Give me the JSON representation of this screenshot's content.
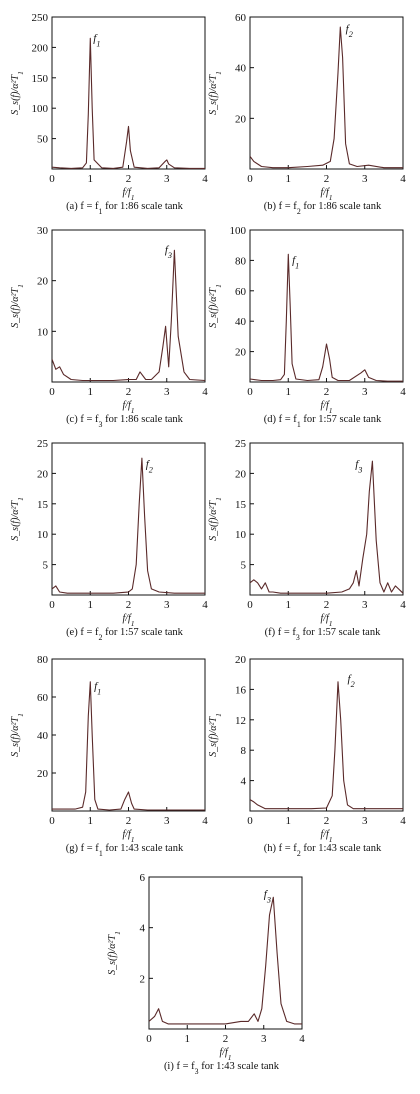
{
  "chart_data": [
    {
      "id": "a",
      "type": "line",
      "xlabel": "f/f_1",
      "ylabel": "S_s(f)/α²T_1",
      "xlim": [
        0,
        4
      ],
      "ylim": [
        0,
        250
      ],
      "xticks": [
        0,
        1,
        2,
        3,
        4
      ],
      "yticks": [
        50,
        100,
        150,
        200,
        250
      ],
      "peak_label": "f_1",
      "peak_label_at": [
        1.08,
        210
      ],
      "caption": "(a) f = f_1 for 1:86 scale tank",
      "x": [
        0,
        0.2,
        0.5,
        0.8,
        0.9,
        0.95,
        1.0,
        1.05,
        1.1,
        1.3,
        1.6,
        1.85,
        1.95,
        2.0,
        2.05,
        2.15,
        2.5,
        2.8,
        2.95,
        3.0,
        3.05,
        3.2,
        3.6,
        4.0
      ],
      "y": [
        3,
        2,
        1,
        2,
        10,
        90,
        215,
        100,
        15,
        2,
        1,
        3,
        45,
        70,
        30,
        3,
        1,
        2,
        12,
        15,
        8,
        2,
        1,
        1
      ]
    },
    {
      "id": "b",
      "type": "line",
      "xlabel": "f/f_1",
      "ylabel": "S_s(f)/α²T_1",
      "xlim": [
        0,
        4
      ],
      "ylim": [
        0,
        60
      ],
      "xticks": [
        0,
        1,
        2,
        3,
        4
      ],
      "yticks": [
        20,
        40,
        60
      ],
      "peak_label": "f_2",
      "peak_label_at": [
        2.5,
        54
      ],
      "caption": "(b) f = f_2 for 1:86 scale tank",
      "x": [
        0,
        0.1,
        0.3,
        0.6,
        1.0,
        1.5,
        1.9,
        2.1,
        2.2,
        2.3,
        2.36,
        2.42,
        2.5,
        2.6,
        2.8,
        3.1,
        3.5,
        4.0
      ],
      "y": [
        5,
        3,
        1,
        0.5,
        0.5,
        1,
        1.5,
        3,
        12,
        38,
        56,
        44,
        10,
        2,
        1,
        1.5,
        0.5,
        0.5
      ]
    },
    {
      "id": "c",
      "type": "line",
      "xlabel": "f/f_1",
      "ylabel": "S_s(f)/α²T_1",
      "xlim": [
        0,
        4
      ],
      "ylim": [
        0,
        30
      ],
      "xticks": [
        0,
        1,
        2,
        3,
        4
      ],
      "yticks": [
        10,
        20,
        30
      ],
      "peak_label": "f_3",
      "peak_label_at": [
        2.95,
        25.5
      ],
      "caption": "(c) f = f_3 for 1:86 scale tank",
      "x": [
        0,
        0.1,
        0.2,
        0.3,
        0.5,
        0.8,
        1.2,
        1.6,
        2.0,
        2.2,
        2.3,
        2.45,
        2.6,
        2.8,
        2.9,
        2.97,
        3.05,
        3.12,
        3.2,
        3.3,
        3.45,
        3.6,
        4.0
      ],
      "y": [
        4.5,
        2.5,
        3,
        1.5,
        0.5,
        0.3,
        0.3,
        0.3,
        0.5,
        0.5,
        2,
        0.5,
        0.5,
        2,
        7,
        11,
        3,
        12,
        26,
        9,
        2,
        0.5,
        0.3
      ]
    },
    {
      "id": "d",
      "type": "line",
      "xlabel": "f/f_1",
      "ylabel": "S_s(f)/α²T_1",
      "xlim": [
        0,
        4
      ],
      "ylim": [
        0,
        100
      ],
      "xticks": [
        0,
        1,
        2,
        3,
        4
      ],
      "yticks": [
        20,
        40,
        60,
        80,
        100
      ],
      "peak_label": "f_1",
      "peak_label_at": [
        1.1,
        78
      ],
      "caption": "(d) f = f_1 for 1:57 scale tank",
      "x": [
        0,
        0.3,
        0.6,
        0.8,
        0.9,
        0.95,
        1.0,
        1.05,
        1.1,
        1.2,
        1.5,
        1.8,
        1.9,
        2.0,
        2.08,
        2.15,
        2.3,
        2.6,
        2.9,
        3.0,
        3.1,
        3.3,
        3.6,
        4.0
      ],
      "y": [
        2,
        1,
        1,
        1.5,
        5,
        40,
        84,
        50,
        12,
        2,
        1,
        1.5,
        10,
        25,
        15,
        3,
        1,
        1,
        6,
        8,
        3,
        1,
        0.5,
        0.5
      ]
    },
    {
      "id": "e",
      "type": "line",
      "xlabel": "f/f_1",
      "ylabel": "S_s(f)/α²T_1",
      "xlim": [
        0,
        4
      ],
      "ylim": [
        0,
        25
      ],
      "xticks": [
        0,
        1,
        2,
        3,
        4
      ],
      "yticks": [
        5,
        10,
        15,
        20,
        25
      ],
      "peak_label": "f_2",
      "peak_label_at": [
        2.45,
        21
      ],
      "caption": "(e) f = f_2 for 1:57 scale tank",
      "x": [
        0,
        0.1,
        0.2,
        0.4,
        0.8,
        1.2,
        1.6,
        2.0,
        2.1,
        2.2,
        2.28,
        2.35,
        2.42,
        2.5,
        2.6,
        2.8,
        3.2,
        3.6,
        4.0
      ],
      "y": [
        1,
        1.5,
        0.5,
        0.3,
        0.3,
        0.3,
        0.3,
        0.5,
        1,
        5,
        15,
        22.5,
        13,
        4,
        1,
        0.5,
        0.3,
        0.3,
        0.3
      ]
    },
    {
      "id": "f",
      "type": "line",
      "xlabel": "f/f_1",
      "ylabel": "S_s(f)/α²T_1",
      "xlim": [
        0,
        4
      ],
      "ylim": [
        0,
        25
      ],
      "xticks": [
        0,
        1,
        2,
        3,
        4
      ],
      "yticks": [
        5,
        10,
        15,
        20,
        25
      ],
      "peak_label": "f_3",
      "peak_label_at": [
        2.75,
        21
      ],
      "caption": "(f) f = f_3 for 1:57 scale tank",
      "x": [
        0,
        0.1,
        0.2,
        0.3,
        0.4,
        0.5,
        0.6,
        0.8,
        1.2,
        1.6,
        2.0,
        2.4,
        2.6,
        2.7,
        2.78,
        2.85,
        2.95,
        3.05,
        3.12,
        3.2,
        3.3,
        3.4,
        3.5,
        3.6,
        3.7,
        3.8,
        4.0
      ],
      "y": [
        2,
        2.5,
        2,
        1,
        2,
        0.5,
        0.5,
        0.3,
        0.3,
        0.3,
        0.3,
        0.5,
        1,
        2,
        4,
        1.5,
        6,
        10,
        17,
        22,
        9,
        2,
        0.5,
        2,
        0.5,
        1.5,
        0.3
      ]
    },
    {
      "id": "g",
      "type": "line",
      "xlabel": "f/f_1",
      "ylabel": "S_s(f)/α²T_1",
      "xlim": [
        0,
        4
      ],
      "ylim": [
        0,
        80
      ],
      "xticks": [
        0,
        1,
        2,
        3,
        4
      ],
      "yticks": [
        20,
        40,
        60,
        80
      ],
      "peak_label": "f_1",
      "peak_label_at": [
        1.1,
        64
      ],
      "caption": "(g) f = f_1 for 1:43 scale tank",
      "x": [
        0,
        0.3,
        0.6,
        0.8,
        0.88,
        0.95,
        1.0,
        1.05,
        1.12,
        1.2,
        1.5,
        1.8,
        1.9,
        2.0,
        2.08,
        2.15,
        2.5,
        3.0,
        3.5,
        4.0
      ],
      "y": [
        1,
        1,
        1,
        2,
        10,
        50,
        68,
        40,
        6,
        1,
        0.5,
        1,
        6,
        10,
        4,
        1,
        0.5,
        0.5,
        0.5,
        0.5
      ]
    },
    {
      "id": "h",
      "type": "line",
      "xlabel": "f/f_1",
      "ylabel": "S_s(f)/α²T_1",
      "xlim": [
        0,
        4
      ],
      "ylim": [
        0,
        20
      ],
      "xticks": [
        0,
        1,
        2,
        3,
        4
      ],
      "yticks": [
        4,
        8,
        12,
        16,
        20
      ],
      "peak_label": "f_2",
      "peak_label_at": [
        2.55,
        17
      ],
      "caption": "(h) f = f_2 for 1:43 scale tank",
      "x": [
        0,
        0.1,
        0.2,
        0.4,
        0.8,
        1.2,
        1.6,
        2.0,
        2.15,
        2.22,
        2.3,
        2.37,
        2.45,
        2.55,
        2.7,
        3.0,
        3.5,
        4.0
      ],
      "y": [
        1.5,
        1.2,
        0.8,
        0.3,
        0.3,
        0.3,
        0.3,
        0.4,
        2,
        8,
        17,
        12,
        4,
        0.8,
        0.3,
        0.3,
        0.3,
        0.3
      ]
    },
    {
      "id": "i",
      "type": "line",
      "xlabel": "f/f_1",
      "ylabel": "S_s(f)/α²T_1",
      "xlim": [
        0,
        4
      ],
      "ylim": [
        0,
        6
      ],
      "xticks": [
        0,
        1,
        2,
        3,
        4
      ],
      "yticks": [
        2,
        4,
        6
      ],
      "peak_label": "f_3",
      "peak_label_at": [
        3.0,
        5.2
      ],
      "caption": "(i) f = f_3 for 1:43 scale tank",
      "x": [
        0,
        0.15,
        0.25,
        0.35,
        0.5,
        0.7,
        1.0,
        1.5,
        2.0,
        2.4,
        2.6,
        2.75,
        2.85,
        2.95,
        3.05,
        3.15,
        3.25,
        3.35,
        3.45,
        3.6,
        3.8,
        4.0
      ],
      "y": [
        0.3,
        0.5,
        0.8,
        0.3,
        0.2,
        0.2,
        0.2,
        0.2,
        0.2,
        0.3,
        0.3,
        0.6,
        0.3,
        0.8,
        2.5,
        4.5,
        5.2,
        3,
        1,
        0.3,
        0.2,
        0.2
      ]
    }
  ]
}
